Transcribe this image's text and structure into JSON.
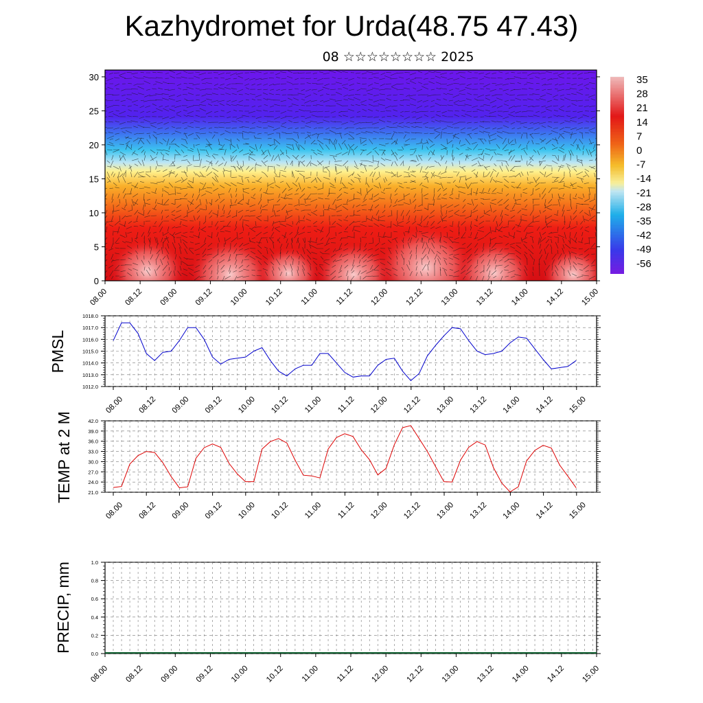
{
  "page": {
    "title": "Kazhydromet for Urda(48.75 47.43)",
    "subtitle": "08 ☆☆☆☆☆☆☆☆ 2025"
  },
  "chart_data": [
    {
      "type": "heatmap",
      "title": "",
      "y_ticks": [
        "0",
        "5",
        "10",
        "15",
        "20",
        "25",
        "30"
      ],
      "ylim": [
        0,
        31
      ],
      "x_ticks": [
        "08.00",
        "08.12",
        "09.00",
        "09.12",
        "10.00",
        "10.12",
        "11.00",
        "11.12",
        "12.00",
        "12.12",
        "13.00",
        "13.12",
        "14.00",
        "14.12",
        "15.00"
      ],
      "colorbar_labels": [
        "35",
        "28",
        "21",
        "14",
        "7",
        "0",
        "-7",
        "-14",
        "-21",
        "-28",
        "-35",
        "-42",
        "-49",
        "-56"
      ],
      "colors": {
        "warm": "#e8141c",
        "hot": "#f6b8b8",
        "cold": "#6a18ee",
        "neutral": "#fff3a8",
        "cool": "#22b8ee"
      },
      "overlay": "wind vectors"
    },
    {
      "type": "line",
      "ylabel": "PMSL",
      "y_ticks": [
        "1012.0",
        "1013.0",
        "1014.0",
        "1015.0",
        "1016.0",
        "1017.0",
        "1018.0"
      ],
      "ylim": [
        1012,
        1018
      ],
      "x_ticks": [
        "08.00",
        "08.12",
        "09.00",
        "09.12",
        "10.00",
        "10.12",
        "11.00",
        "11.12",
        "12.00",
        "12.12",
        "13.00",
        "13.12",
        "14.00",
        "14.12",
        "15.00"
      ],
      "color": "#0000cc",
      "values": [
        1015.9,
        1017.4,
        1017.4,
        1016.5,
        1014.8,
        1014.2,
        1014.9,
        1015.0,
        1015.9,
        1017.0,
        1017.0,
        1016.0,
        1014.5,
        1013.9,
        1014.3,
        1014.4,
        1014.5,
        1015.0,
        1015.3,
        1014.2,
        1013.3,
        1012.9,
        1013.5,
        1013.8,
        1013.8,
        1014.8,
        1014.8,
        1014.0,
        1013.2,
        1012.8,
        1012.9,
        1012.9,
        1013.8,
        1014.3,
        1014.4,
        1013.3,
        1012.5,
        1013.1,
        1014.6,
        1015.5,
        1016.3,
        1017.0,
        1016.9,
        1015.9,
        1015.0,
        1014.7,
        1014.8,
        1015.0,
        1015.7,
        1016.2,
        1016.1,
        1015.2,
        1014.3,
        1013.5,
        1013.6,
        1013.7,
        1014.2
      ]
    },
    {
      "type": "line",
      "ylabel": "TEMP at 2 M",
      "y_ticks": [
        "21.0",
        "24.0",
        "27.0",
        "30.0",
        "33.0",
        "36.0",
        "39.0",
        "42.0"
      ],
      "ylim": [
        21,
        42
      ],
      "x_ticks": [
        "08.00",
        "08.12",
        "09.00",
        "09.12",
        "10.00",
        "10.12",
        "11.00",
        "11.12",
        "12.00",
        "12.12",
        "13.00",
        "13.12",
        "14.00",
        "14.12",
        "15.00"
      ],
      "color": "#dd0000",
      "values": [
        22.4,
        22.7,
        29.3,
        31.8,
        33.0,
        32.7,
        29.7,
        25.6,
        22.3,
        22.6,
        31.0,
        34.1,
        35.2,
        34.2,
        29.5,
        26.4,
        24.1,
        24.1,
        33.7,
        35.9,
        36.8,
        35.5,
        30.4,
        26.0,
        25.8,
        25.2,
        33.7,
        37.1,
        38.2,
        37.4,
        33.5,
        30.6,
        26.1,
        28.0,
        35.0,
        40.0,
        40.6,
        36.8,
        33.0,
        28.5,
        24.1,
        24.0,
        30.4,
        34.2,
        35.9,
        34.9,
        28.2,
        23.7,
        21.1,
        22.6,
        30.2,
        33.3,
        34.8,
        34.0,
        29.0,
        25.7,
        22.3
      ]
    },
    {
      "type": "bar",
      "ylabel": "PRECIP, mm",
      "y_ticks": [
        "0.0",
        "0.2",
        "0.4",
        "0.6",
        "0.8",
        "1.0"
      ],
      "ylim": [
        0,
        1
      ],
      "x_ticks": [
        "08.00",
        "08.12",
        "09.00",
        "09.12",
        "10.00",
        "10.12",
        "11.00",
        "11.12",
        "12.00",
        "12.12",
        "13.00",
        "13.12",
        "14.00",
        "14.12",
        "15.00"
      ],
      "values": [
        0
      ]
    }
  ]
}
